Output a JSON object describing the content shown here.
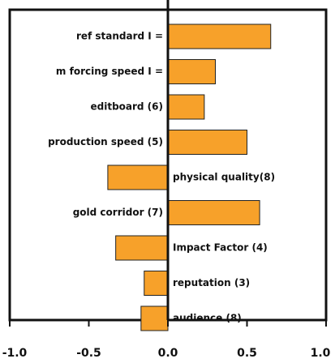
{
  "chart_data": {
    "type": "bar",
    "orientation": "horizontal",
    "title": "",
    "xlabel": "",
    "ylabel": "",
    "xlim": [
      -1.0,
      1.0
    ],
    "grid": false,
    "legend": "none",
    "bar_color": "#F7A12A",
    "categories": [
      "ref standard I =",
      "m forcing speed I =",
      "editboard (6)",
      "production speed (5)",
      "physical quality(8)",
      "gold corridor (7)",
      "Impact Factor (4)",
      "reputation (3)",
      "audience (8)"
    ],
    "values": [
      0.65,
      0.3,
      0.23,
      0.5,
      -0.38,
      0.58,
      -0.33,
      -0.15,
      -0.17
    ],
    "xticks": [
      -1.0,
      -0.5,
      0.0,
      0.5,
      1.0
    ],
    "xtick_labels": [
      "-1.0",
      "-0.5",
      "0.0",
      "0.5",
      "1.0"
    ]
  }
}
